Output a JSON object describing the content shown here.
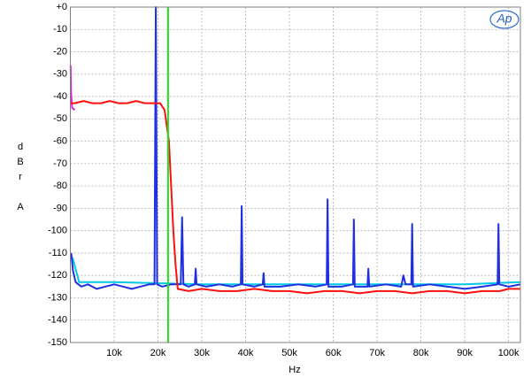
{
  "chart_data": {
    "type": "line",
    "y_label": "dBr A",
    "x_label": "Hz",
    "logo": "Ap",
    "grid": true,
    "xlim": [
      0,
      102700
    ],
    "ylim": [
      -150,
      0
    ],
    "xticks": [
      {
        "value": 10000,
        "label": "10k"
      },
      {
        "value": 20000,
        "label": "20k"
      },
      {
        "value": 30000,
        "label": "30k"
      },
      {
        "value": 40000,
        "label": "40k"
      },
      {
        "value": 50000,
        "label": "50k"
      },
      {
        "value": 60000,
        "label": "60k"
      },
      {
        "value": 70000,
        "label": "70k"
      },
      {
        "value": 80000,
        "label": "80k"
      },
      {
        "value": 90000,
        "label": "90k"
      },
      {
        "value": 100000,
        "label": "100k"
      }
    ],
    "yticks": [
      {
        "value": 0,
        "label": "+0"
      },
      -10,
      -20,
      -30,
      -40,
      -50,
      -60,
      -70,
      -80,
      -90,
      -100,
      -110,
      -120,
      -130,
      -140,
      -150
    ],
    "series": [
      {
        "color": "#00c8e8",
        "x": [
          500,
          2000,
          10000,
          30000,
          60000,
          90000,
          102700
        ],
        "values": [
          -112,
          -123,
          -123,
          -124,
          -124,
          -124,
          -123
        ]
      },
      {
        "color": "#2030e0",
        "x": [
          200,
          600,
          1200,
          2500,
          4000,
          6000,
          8000,
          10000,
          12000,
          14000,
          16000,
          18000,
          19200,
          19500,
          19800,
          21000,
          23000,
          25200,
          25500,
          25800,
          27000,
          28400,
          28600,
          28800,
          31000,
          34000,
          37000,
          38900,
          39100,
          39300,
          42000,
          43900,
          44100,
          44300,
          48000,
          52000,
          56000,
          58500,
          58700,
          58900,
          62000,
          64500,
          64700,
          64900,
          67800,
          68000,
          68200,
          72000,
          75500,
          76000,
          76500,
          77800,
          78000,
          78200,
          82000,
          86000,
          90000,
          94000,
          97500,
          97700,
          97900,
          100000,
          102700
        ],
        "values": [
          -110,
          -118,
          -123,
          -125,
          -124,
          -126,
          -125,
          -124,
          -125,
          -126,
          -125,
          -124,
          -124,
          0,
          -124,
          -125,
          -124,
          -124,
          -94,
          -124,
          -125,
          -124,
          -117,
          -124,
          -125,
          -124,
          -125,
          -124,
          -89,
          -124,
          -125,
          -124,
          -119,
          -125,
          -125,
          -124,
          -125,
          -124,
          -86,
          -125,
          -125,
          -124,
          -95,
          -125,
          -125,
          -117,
          -125,
          -124,
          -125,
          -120,
          -124,
          -124,
          -97,
          -125,
          -124,
          -125,
          -126,
          -125,
          -124,
          -97,
          -124,
          -125,
          -124
        ]
      },
      {
        "color": "#e020e0",
        "x": [
          50,
          150,
          400,
          1000
        ],
        "values": [
          -26,
          -38,
          -45,
          -46
        ]
      },
      {
        "color": "#ff1010",
        "x": [
          100,
          1000,
          3000,
          5000,
          7000,
          9000,
          11000,
          13000,
          15000,
          17000,
          19000,
          20500,
          21500,
          22500,
          23000,
          23500,
          24000,
          24500,
          27000,
          30000,
          34000,
          38000,
          42000,
          46000,
          50000,
          54000,
          58000,
          62000,
          66000,
          70000,
          74000,
          78000,
          82000,
          86000,
          90000,
          94000,
          98000,
          100000,
          102700
        ],
        "values": [
          -43,
          -43,
          -42,
          -43,
          -43,
          -42,
          -43,
          -43,
          -42,
          -43,
          -43,
          -43,
          -46,
          -60,
          -80,
          -100,
          -115,
          -126,
          -127,
          -126,
          -127,
          -127,
          -126,
          -127,
          -127,
          -128,
          -127,
          -127,
          -128,
          -127,
          -127,
          -128,
          -127,
          -127,
          -128,
          -127,
          -127,
          -126,
          -126
        ]
      },
      {
        "color": "#20e020",
        "x": [
          22300,
          22300
        ],
        "values": [
          0,
          -150
        ]
      }
    ]
  }
}
